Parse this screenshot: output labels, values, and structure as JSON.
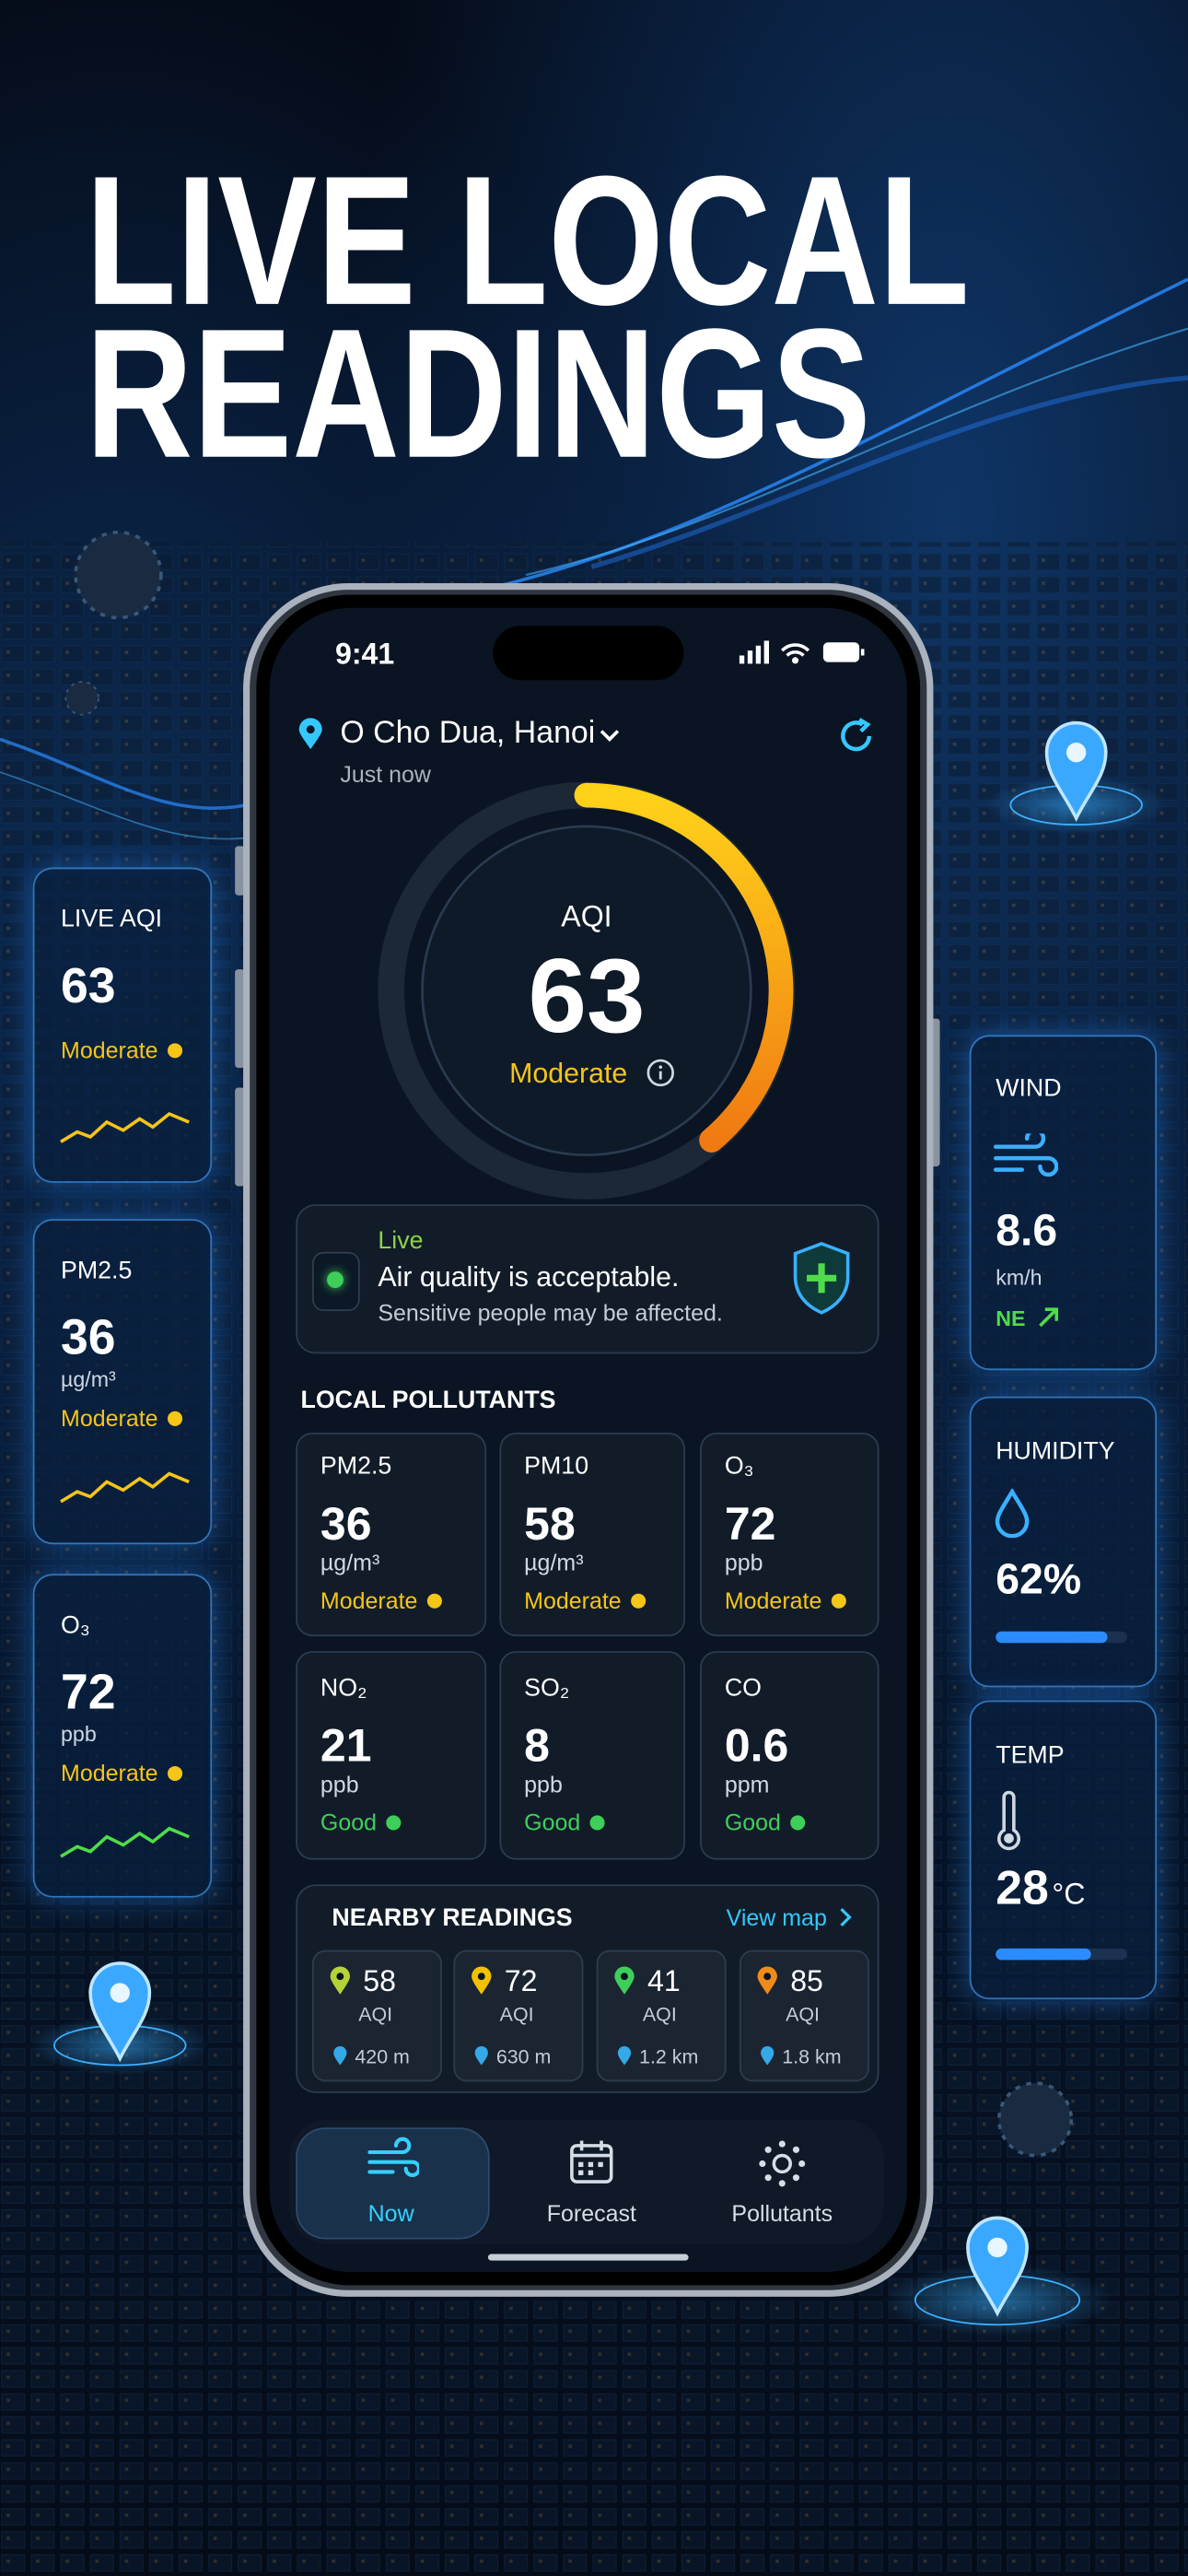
{
  "headline": {
    "line1": "LIVE LOCAL",
    "line2": "READINGS"
  },
  "side_cards": {
    "left": [
      {
        "title": "LIVE AQI",
        "value": 63,
        "status": "Moderate",
        "color": "#f5c518"
      },
      {
        "title": "PM2.5",
        "value": 36,
        "unit": "µg/m³",
        "status": "Moderate",
        "color": "#f5c518"
      },
      {
        "title": "O₃",
        "value": 72,
        "unit": "ppb",
        "status": "Moderate",
        "color": "#f5c518"
      }
    ],
    "right": [
      {
        "title": "WIND",
        "value": 8.6,
        "unit": "km/h",
        "direction": "NE"
      },
      {
        "title": "HUMIDITY",
        "value": "62%"
      },
      {
        "title": "TEMP",
        "value": 28,
        "unit": "°C"
      }
    ]
  },
  "status_bar": {
    "time": "9:41"
  },
  "location": {
    "name": "O Cho Dua, Hanoi",
    "updated": "Just now"
  },
  "gauge": {
    "label": "AQI",
    "value": 63,
    "status": "Moderate"
  },
  "banner": {
    "tag": "Live",
    "title": "Air quality is acceptable.",
    "subtitle": "Sensitive people may be affected."
  },
  "pollutants": {
    "title": "LOCAL POLLUTANTS",
    "items": [
      {
        "name": "PM2.5",
        "value": 36,
        "unit": "µg/m³",
        "status": "Moderate",
        "color": "#f5c518"
      },
      {
        "name": "PM10",
        "value": 58,
        "unit": "µg/m³",
        "status": "Moderate",
        "color": "#f5c518"
      },
      {
        "name": "O₃",
        "value": 72,
        "unit": "ppb",
        "status": "Moderate",
        "color": "#f5c518"
      },
      {
        "name": "NO₂",
        "value": 21,
        "unit": "ppb",
        "status": "Good",
        "color": "#3ecf5a"
      },
      {
        "name": "SO₂",
        "value": 8,
        "unit": "ppb",
        "status": "Good",
        "color": "#3ecf5a"
      },
      {
        "name": "CO",
        "value": 0.6,
        "unit": "ppm",
        "status": "Good",
        "color": "#3ecf5a"
      }
    ]
  },
  "nearby": {
    "title": "NEARBY READINGS",
    "link": "View map",
    "items": [
      {
        "value": 58,
        "label": "AQI",
        "distance": "420 m",
        "color": "#b5d334"
      },
      {
        "value": 72,
        "label": "AQI",
        "distance": "630 m",
        "color": "#f2c200"
      },
      {
        "value": 41,
        "label": "AQI",
        "distance": "1.2 km",
        "color": "#3ecf5a"
      },
      {
        "value": 85,
        "label": "AQI",
        "distance": "1.8 km",
        "color": "#f08a1a"
      }
    ]
  },
  "nav": [
    {
      "label": "Now",
      "active": true
    },
    {
      "label": "Forecast"
    },
    {
      "label": "Pollutants"
    }
  ]
}
